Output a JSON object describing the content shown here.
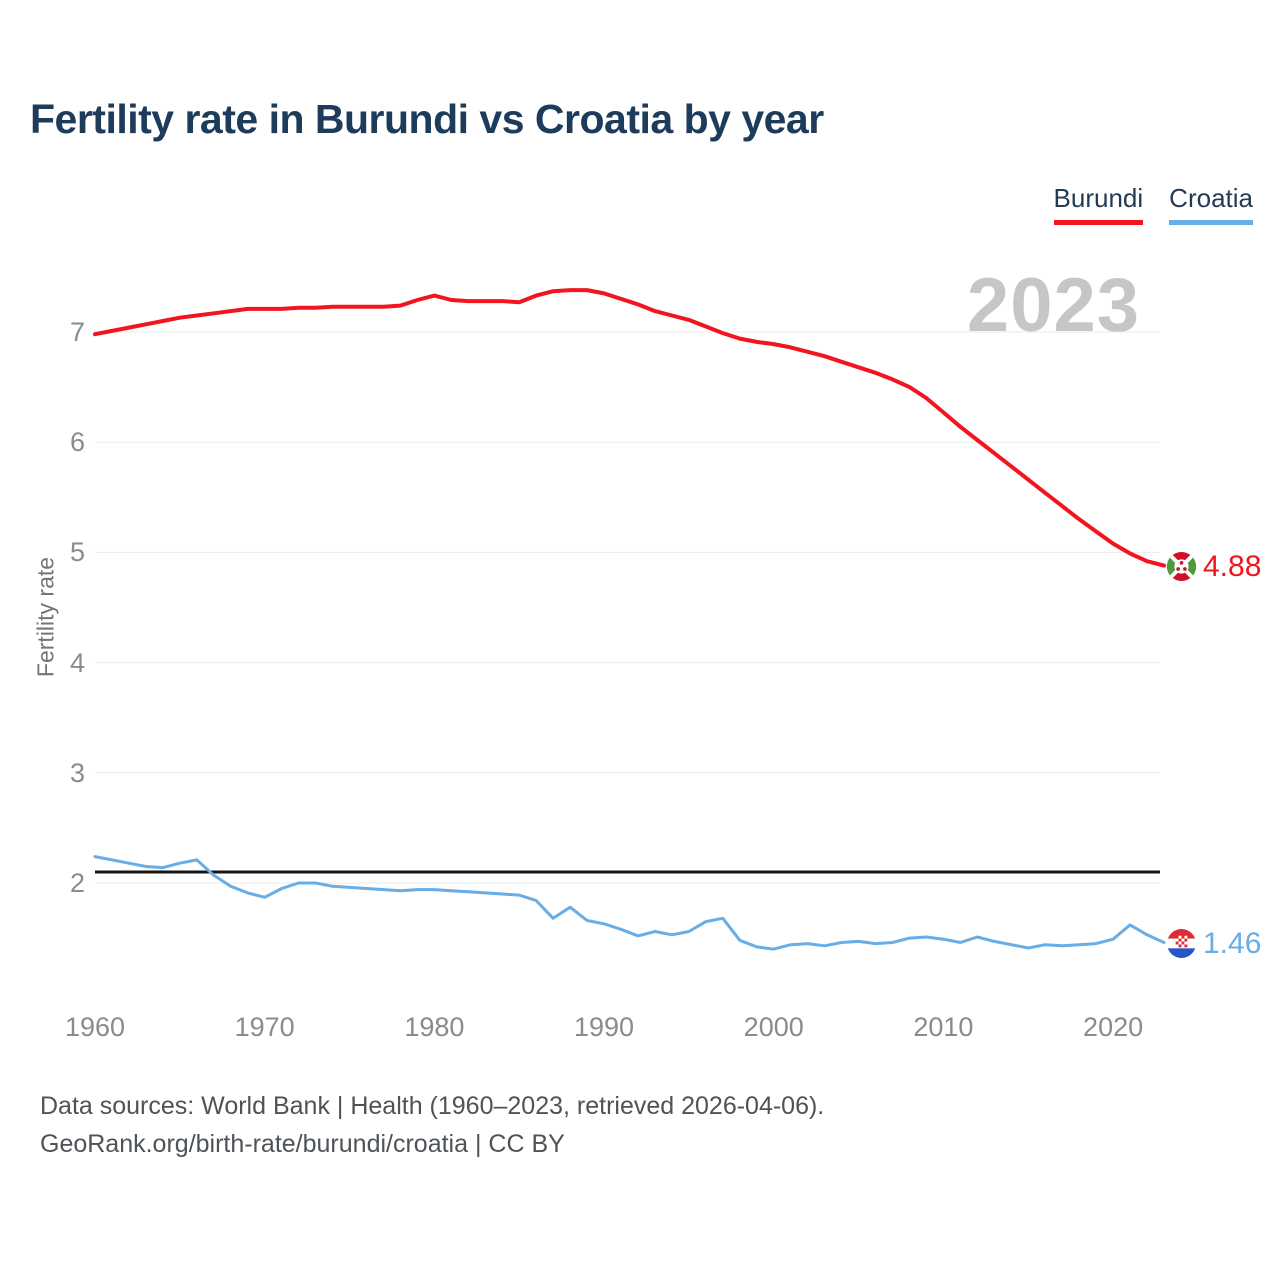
{
  "header": {
    "title": "Fertility rate in Burundi vs Croatia by year"
  },
  "legend": {
    "items": [
      {
        "label": "Burundi",
        "color": "#f2151f"
      },
      {
        "label": "Croatia",
        "color": "#68ade5"
      }
    ]
  },
  "watermark": "2023",
  "end_labels": {
    "burundi": "4.88",
    "croatia": "1.46"
  },
  "footer": {
    "line1": "Data sources: World Bank | Health (1960–2023, retrieved 2026-04-06).",
    "line2": "GeoRank.org/birth-rate/burundi/croatia | CC BY"
  },
  "chart_data": {
    "type": "line",
    "title": "Fertility rate in Burundi vs Croatia by year",
    "xlabel": "",
    "ylabel": "Fertility rate",
    "xlim": [
      1960,
      2023
    ],
    "ylim": [
      0.95,
      7.6
    ],
    "grid": "horizontal",
    "legend_position": "top-right",
    "xticks": [
      1960,
      1970,
      1980,
      1990,
      2000,
      2010,
      2020
    ],
    "yticks": [
      2,
      3,
      4,
      5,
      6,
      7
    ],
    "reference_line": {
      "value": 2.1,
      "color": "#141414"
    },
    "x": [
      1960,
      1961,
      1962,
      1963,
      1964,
      1965,
      1966,
      1967,
      1968,
      1969,
      1970,
      1971,
      1972,
      1973,
      1974,
      1975,
      1976,
      1977,
      1978,
      1979,
      1980,
      1981,
      1982,
      1983,
      1984,
      1985,
      1986,
      1987,
      1988,
      1989,
      1990,
      1991,
      1992,
      1993,
      1994,
      1995,
      1996,
      1997,
      1998,
      1999,
      2000,
      2001,
      2002,
      2003,
      2004,
      2005,
      2006,
      2007,
      2008,
      2009,
      2010,
      2011,
      2012,
      2013,
      2014,
      2015,
      2016,
      2017,
      2018,
      2019,
      2020,
      2021,
      2022,
      2023
    ],
    "series": [
      {
        "name": "Burundi",
        "color": "#f2151f",
        "end_label": "4.88",
        "values": [
          6.98,
          7.01,
          7.04,
          7.07,
          7.1,
          7.13,
          7.15,
          7.17,
          7.19,
          7.21,
          7.21,
          7.21,
          7.22,
          7.22,
          7.23,
          7.23,
          7.23,
          7.23,
          7.24,
          7.29,
          7.33,
          7.29,
          7.28,
          7.28,
          7.28,
          7.27,
          7.33,
          7.37,
          7.38,
          7.38,
          7.35,
          7.3,
          7.25,
          7.19,
          7.15,
          7.11,
          7.05,
          6.99,
          6.94,
          6.91,
          6.89,
          6.86,
          6.82,
          6.78,
          6.73,
          6.68,
          6.63,
          6.57,
          6.5,
          6.4,
          6.27,
          6.14,
          6.02,
          5.9,
          5.78,
          5.66,
          5.54,
          5.42,
          5.3,
          5.19,
          5.08,
          4.99,
          4.92,
          4.88
        ]
      },
      {
        "name": "Croatia",
        "color": "#68ade5",
        "end_label": "1.46",
        "values": [
          2.24,
          2.21,
          2.18,
          2.15,
          2.14,
          2.18,
          2.21,
          2.07,
          1.97,
          1.91,
          1.87,
          1.95,
          2.0,
          2.0,
          1.97,
          1.96,
          1.95,
          1.94,
          1.93,
          1.94,
          1.94,
          1.93,
          1.92,
          1.91,
          1.9,
          1.89,
          1.84,
          1.68,
          1.78,
          1.66,
          1.63,
          1.58,
          1.52,
          1.56,
          1.53,
          1.56,
          1.65,
          1.68,
          1.48,
          1.42,
          1.4,
          1.44,
          1.45,
          1.43,
          1.46,
          1.47,
          1.45,
          1.46,
          1.5,
          1.51,
          1.49,
          1.46,
          1.51,
          1.47,
          1.44,
          1.41,
          1.44,
          1.43,
          1.44,
          1.45,
          1.49,
          1.62,
          1.53,
          1.46
        ]
      }
    ]
  }
}
